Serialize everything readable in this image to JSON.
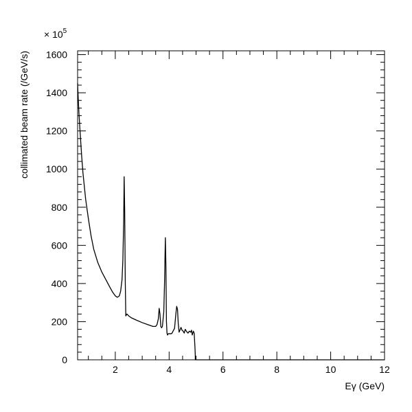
{
  "chart_data": {
    "type": "line",
    "title": "",
    "xlabel": "Eγ (GeV)",
    "ylabel": "collimated beam rate (/GeV/s)",
    "y_scale_label": "× 10",
    "y_scale_exponent": "5",
    "xlim": [
      0.6,
      12
    ],
    "ylim": [
      0,
      1620
    ],
    "x_major_ticks": [
      2,
      4,
      6,
      8,
      10,
      12
    ],
    "y_major_ticks": [
      0,
      200,
      400,
      600,
      800,
      1000,
      1200,
      1400,
      1600
    ],
    "x_tick_labels": [
      "2",
      "4",
      "6",
      "8",
      "10",
      "12"
    ],
    "y_tick_labels": [
      "0",
      "200",
      "400",
      "600",
      "800",
      "1000",
      "1200",
      "1400",
      "1600"
    ],
    "grid": false,
    "legend": "none",
    "line_color": "#000000",
    "series": [
      {
        "x": [
          0.6,
          0.62,
          0.65,
          0.7,
          0.75,
          0.8,
          0.9,
          1.0,
          1.1,
          1.2,
          1.35,
          1.5,
          1.65,
          1.8,
          1.9,
          2.0,
          2.08,
          2.15,
          2.2,
          2.25,
          2.28,
          2.31,
          2.33,
          2.35,
          2.37,
          2.39,
          2.41,
          2.43,
          2.45,
          2.5,
          2.6,
          2.8,
          3.0,
          3.2,
          3.4,
          3.5,
          3.55,
          3.6,
          3.63,
          3.66,
          3.69,
          3.72,
          3.75,
          3.8,
          3.83,
          3.86,
          3.88,
          3.9,
          3.92,
          3.94,
          3.96,
          3.99,
          4.02,
          4.1,
          4.2,
          4.25,
          4.28,
          4.31,
          4.34,
          4.37,
          4.4,
          4.44,
          4.48,
          4.52,
          4.56,
          4.6,
          4.65,
          4.7,
          4.75,
          4.8,
          4.83,
          4.86,
          4.9,
          4.93,
          4.96,
          4.97,
          4.97,
          12
        ],
        "y": [
          1450,
          1380,
          1290,
          1180,
          1070,
          980,
          840,
          740,
          650,
          580,
          510,
          460,
          420,
          380,
          355,
          335,
          328,
          335,
          360,
          420,
          520,
          720,
          960,
          780,
          420,
          230,
          235,
          240,
          238,
          230,
          220,
          207,
          195,
          185,
          175,
          175,
          185,
          215,
          270,
          240,
          175,
          168,
          175,
          250,
          400,
          640,
          500,
          200,
          140,
          130,
          135,
          138,
          136,
          138,
          165,
          240,
          280,
          265,
          190,
          145,
          155,
          170,
          155,
          150,
          140,
          160,
          148,
          140,
          150,
          145,
          155,
          130,
          150,
          140,
          60,
          20,
          0,
          0
        ]
      }
    ]
  }
}
